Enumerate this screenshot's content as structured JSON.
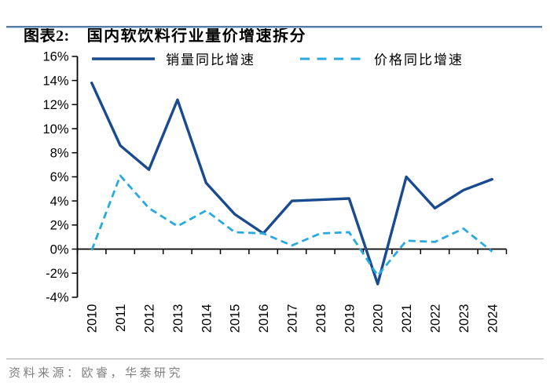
{
  "header": {
    "figure_label": "图表2:",
    "title": "国内软饮料行业量价增速拆分"
  },
  "footer": {
    "source": "资料来源：欧睿，华泰研究"
  },
  "colors": {
    "volume_line": "#1a4a8f",
    "price_line": "#29a9e1",
    "title_rule": "#5a7ba0"
  },
  "chart_data": {
    "type": "line",
    "title": "国内软饮料行业量价增速拆分",
    "categories": [
      "2010",
      "2011",
      "2012",
      "2013",
      "2014",
      "2015",
      "2016",
      "2017",
      "2018",
      "2019",
      "2020",
      "2021",
      "2022",
      "2023",
      "2024"
    ],
    "series": [
      {
        "name": "销量同比增速",
        "style": "solid",
        "color": "#1a4a8f",
        "values": [
          13.8,
          8.6,
          6.6,
          12.4,
          5.5,
          2.9,
          1.3,
          4.0,
          4.1,
          4.2,
          -2.9,
          6.0,
          3.4,
          4.9,
          5.8
        ]
      },
      {
        "name": "价格同比增速",
        "style": "dashed",
        "color": "#29a9e1",
        "values": [
          -0.1,
          6.1,
          3.4,
          1.9,
          3.2,
          1.4,
          1.3,
          0.3,
          1.3,
          1.4,
          -2.2,
          0.7,
          0.6,
          1.7,
          -0.2
        ]
      }
    ],
    "ylim": [
      -4,
      16
    ],
    "ytick_step": 2,
    "yticks": [
      "16%",
      "14%",
      "12%",
      "10%",
      "8%",
      "6%",
      "4%",
      "2%",
      "0%",
      "-2%",
      "-4%"
    ],
    "xlabel": "",
    "ylabel": "",
    "grid": false,
    "legend_position": "top",
    "x_axis_cross": "zero",
    "x_label_rotation": -90
  }
}
